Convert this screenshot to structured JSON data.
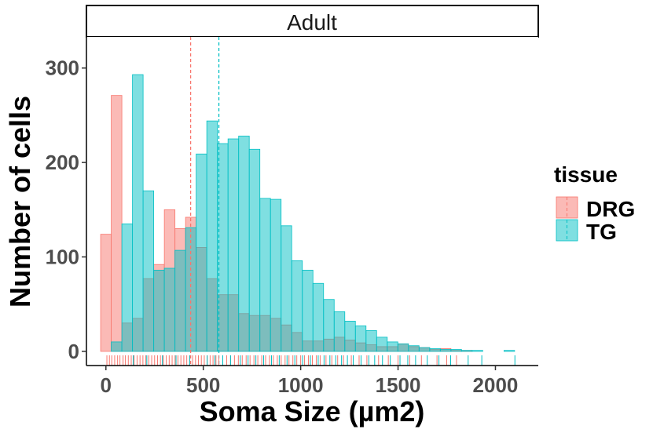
{
  "chart_data": {
    "type": "histogram",
    "facet": "Adult",
    "xlabel": "Soma Size (µm2)",
    "ylabel": "Number of cells",
    "xlim": [
      -100,
      2220
    ],
    "ylim": [
      -15,
      333
    ],
    "x_ticks": [
      0,
      500,
      1000,
      1500,
      2000
    ],
    "y_ticks": [
      0,
      100,
      200,
      300
    ],
    "bin_width": 54.5,
    "bin_starts": [
      -27,
      27.5,
      82,
      136.5,
      191,
      245.5,
      300,
      354.5,
      409,
      463.5,
      518,
      572.5,
      627,
      681.5,
      736,
      790.5,
      845,
      899.5,
      954,
      1008.5,
      1063,
      1117.5,
      1172,
      1226.5,
      1281,
      1335.5,
      1390,
      1444.5,
      1499,
      1553.5,
      1608,
      1662.5,
      1717,
      1771.5,
      1826,
      1880.5,
      1935,
      1989.5,
      2044
    ],
    "legend_title": "tissue",
    "series": [
      {
        "name": "DRG",
        "color": "#F8766D",
        "fill": "#F8A9A3",
        "mean": 435,
        "values": [
          124,
          271,
          30,
          35,
          77,
          92,
          150,
          130,
          142,
          110,
          77,
          60,
          60,
          40,
          38,
          38,
          35,
          28,
          20,
          11,
          11,
          13,
          15,
          12,
          9,
          7,
          5,
          5,
          8,
          5,
          4,
          2,
          3,
          1,
          1,
          0,
          0,
          0,
          0
        ]
      },
      {
        "name": "TG",
        "color": "#00BFC4",
        "fill": "#7EE2E4",
        "mean": 580,
        "values": [
          0,
          10,
          135,
          293,
          170,
          86,
          88,
          107,
          131,
          209,
          244,
          220,
          225,
          228,
          214,
          162,
          161,
          133,
          96,
          86,
          72,
          55,
          42,
          32,
          27,
          22,
          15,
          10,
          8,
          6,
          4,
          3,
          2,
          2,
          1,
          1,
          0,
          0,
          1
        ]
      }
    ],
    "rug": {
      "DRG": [
        5,
        18,
        30,
        45,
        60,
        72,
        88,
        100,
        115,
        130,
        145,
        160,
        175,
        190,
        205,
        220,
        235,
        250,
        265,
        280,
        295,
        310,
        325,
        340,
        355,
        370,
        385,
        400,
        415,
        430,
        445,
        460,
        475,
        490,
        505,
        520,
        535,
        550,
        565,
        580,
        600,
        620,
        640,
        660,
        680,
        700,
        720,
        740,
        760,
        780,
        800,
        820,
        840,
        860,
        880,
        900,
        920,
        940,
        960,
        980,
        1000,
        1020,
        1040,
        1060,
        1080,
        1100,
        1130,
        1160,
        1190,
        1220,
        1260,
        1300,
        1340,
        1400,
        1450,
        1500,
        1560,
        1620,
        1700,
        1750,
        1800
      ],
      "TG": [
        140,
        210,
        290,
        360,
        430,
        520,
        560,
        600,
        640,
        690,
        730,
        770,
        810,
        850,
        890,
        930,
        970,
        1010,
        1050,
        1090,
        1120,
        1150,
        1180,
        1210,
        1240,
        1270,
        1310,
        1350,
        1380,
        1420,
        1460,
        1510,
        1550,
        1590,
        1650,
        1710,
        1770,
        1860,
        1930,
        2100
      ]
    }
  }
}
